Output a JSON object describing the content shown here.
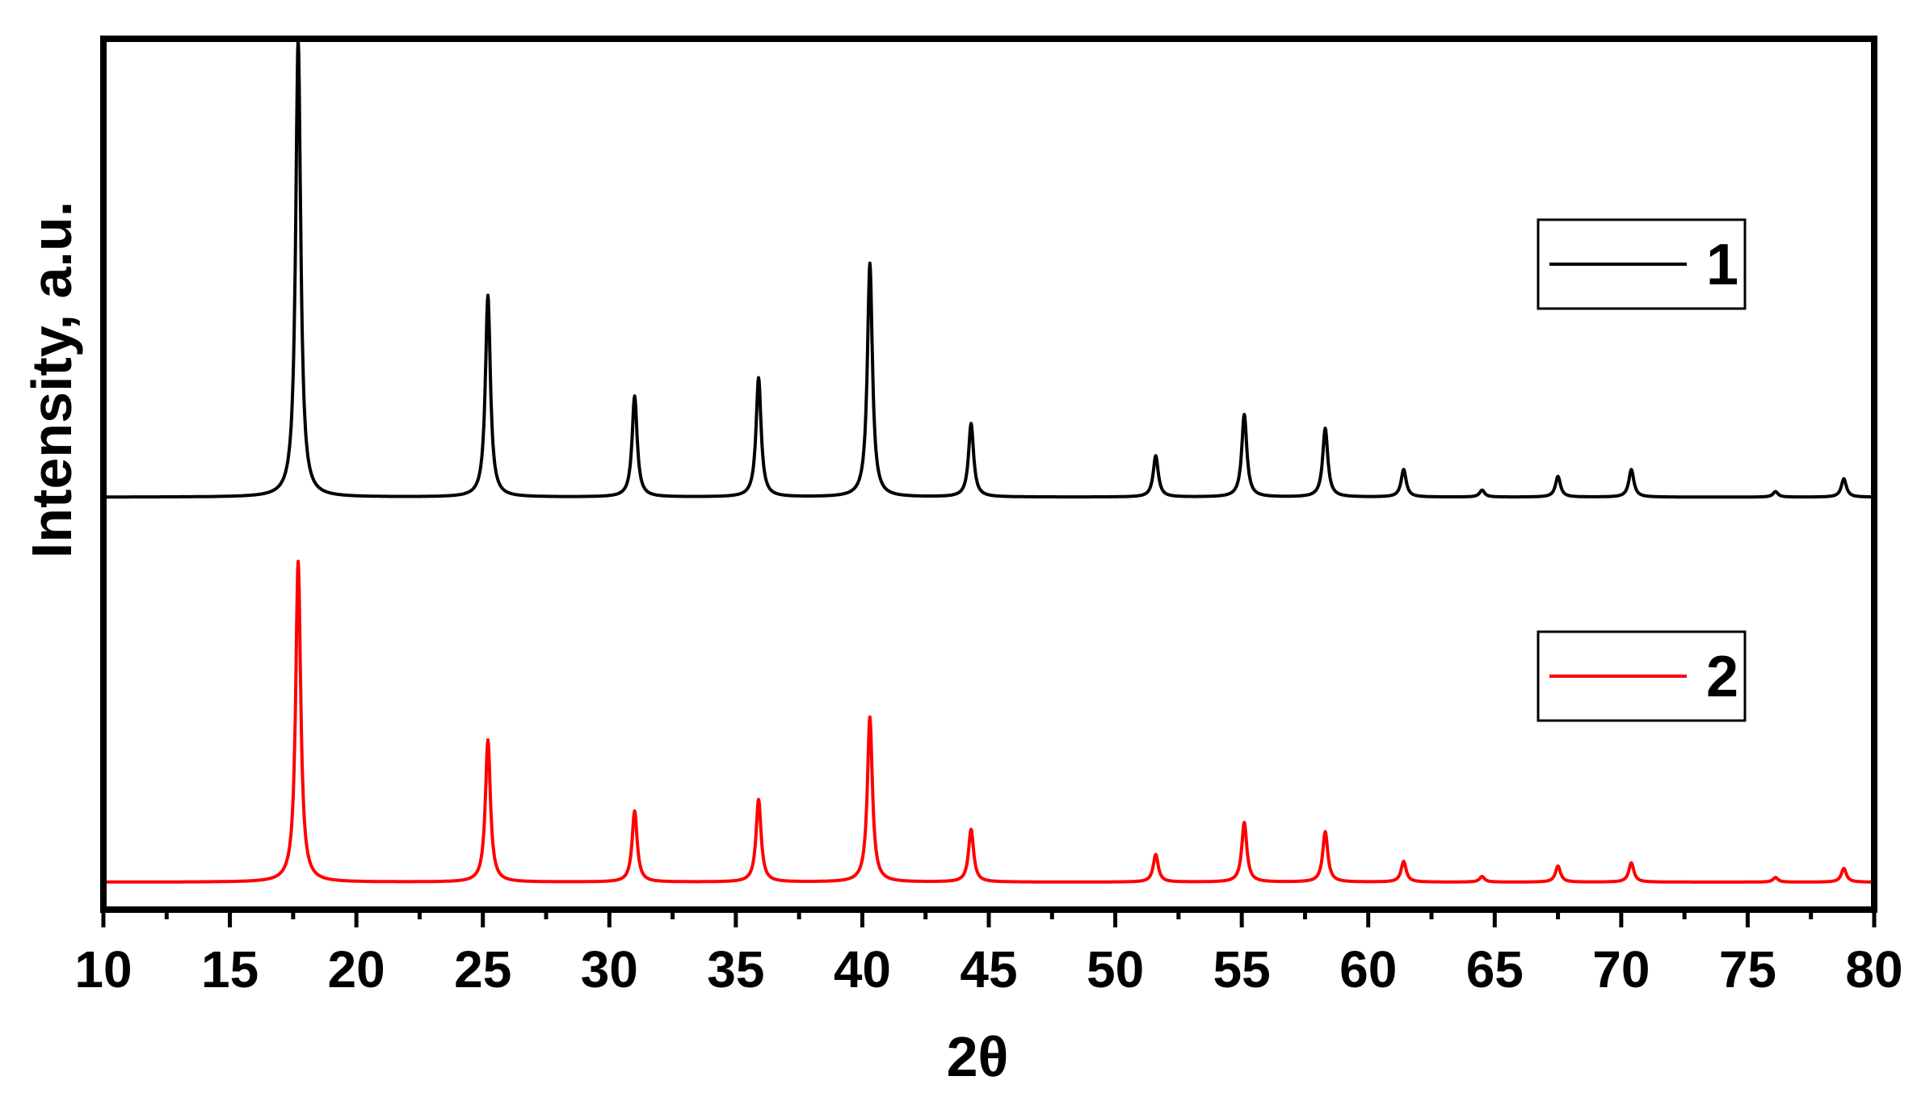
{
  "chart_data": {
    "type": "line",
    "xlabel": "2θ",
    "ylabel": "Intensity, a.u.",
    "xlim": [
      10,
      80
    ],
    "ylim": [
      0,
      1.9
    ],
    "xticks": [
      "10",
      "15",
      "20",
      "25",
      "30",
      "35",
      "40",
      "45",
      "50",
      "55",
      "60",
      "65",
      "70",
      "75",
      "80"
    ],
    "yticks_shown": false,
    "legend_position": "right",
    "series": [
      {
        "name": "1",
        "color": "#000000",
        "baseline": 0.9,
        "peaks": [
          {
            "x": 17.7,
            "height": 1.0
          },
          {
            "x": 25.2,
            "height": 0.44
          },
          {
            "x": 31.0,
            "height": 0.22
          },
          {
            "x": 35.9,
            "height": 0.26
          },
          {
            "x": 40.3,
            "height": 0.51
          },
          {
            "x": 44.3,
            "height": 0.16
          },
          {
            "x": 51.6,
            "height": 0.09
          },
          {
            "x": 55.1,
            "height": 0.18
          },
          {
            "x": 58.3,
            "height": 0.15
          },
          {
            "x": 61.4,
            "height": 0.06
          },
          {
            "x": 64.5,
            "height": 0.015
          },
          {
            "x": 67.5,
            "height": 0.045
          },
          {
            "x": 70.4,
            "height": 0.06
          },
          {
            "x": 76.1,
            "height": 0.012
          },
          {
            "x": 78.8,
            "height": 0.04
          }
        ]
      },
      {
        "name": "2",
        "color": "#ff0000",
        "baseline": 0.06,
        "peaks": [
          {
            "x": 17.7,
            "height": 0.7
          },
          {
            "x": 25.2,
            "height": 0.31
          },
          {
            "x": 31.0,
            "height": 0.155
          },
          {
            "x": 35.9,
            "height": 0.18
          },
          {
            "x": 40.3,
            "height": 0.36
          },
          {
            "x": 44.3,
            "height": 0.115
          },
          {
            "x": 51.6,
            "height": 0.06
          },
          {
            "x": 55.1,
            "height": 0.13
          },
          {
            "x": 58.3,
            "height": 0.11
          },
          {
            "x": 61.4,
            "height": 0.045
          },
          {
            "x": 64.5,
            "height": 0.012
          },
          {
            "x": 67.5,
            "height": 0.035
          },
          {
            "x": 70.4,
            "height": 0.042
          },
          {
            "x": 76.1,
            "height": 0.01
          },
          {
            "x": 78.8,
            "height": 0.03
          }
        ]
      }
    ]
  }
}
